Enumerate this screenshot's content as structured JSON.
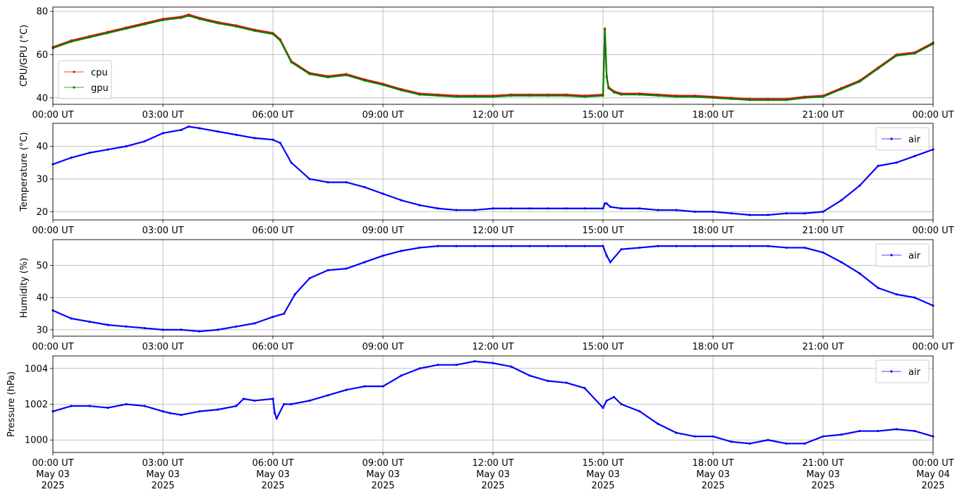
{
  "chart_data": [
    {
      "type": "line",
      "ylabel": "CPU/GPU (°C)",
      "ylim": [
        37,
        82
      ],
      "yticks": [
        40,
        60,
        80
      ],
      "ytick_labels": [
        "40",
        "60",
        "80"
      ],
      "xlim": [
        0,
        24
      ],
      "xtick_labels": [
        "00:00 UT",
        "03:00 UT",
        "06:00 UT",
        "09:00 UT",
        "12:00 UT",
        "15:00 UT",
        "18:00 UT",
        "21:00 UT",
        "00:00 UT"
      ],
      "grid": true,
      "legend": "lower-left",
      "x": [
        0,
        0.5,
        1,
        1.5,
        2,
        2.5,
        3,
        3.5,
        3.7,
        4,
        4.5,
        5,
        5.5,
        6,
        6.2,
        6.5,
        7,
        7.5,
        8,
        8.5,
        9,
        9.5,
        10,
        10.5,
        11,
        11.5,
        12,
        12.5,
        13,
        13.5,
        14,
        14.5,
        15.0,
        15.05,
        15.1,
        15.15,
        15.3,
        15.5,
        16,
        16.5,
        17,
        17.5,
        18,
        18.5,
        19,
        19.5,
        20,
        20.5,
        21,
        21.5,
        22,
        22.5,
        23,
        23.5,
        24
      ],
      "series": [
        {
          "name": "cpu",
          "color": "#ff0000",
          "values": [
            63.5,
            66.5,
            68.5,
            70.5,
            72.5,
            74.5,
            76.5,
            77.5,
            78.5,
            77,
            75,
            73.5,
            71.5,
            70,
            67,
            57,
            51.5,
            50,
            51,
            48.5,
            46.5,
            44,
            42,
            41.5,
            41,
            41,
            41,
            41.5,
            41.5,
            41.5,
            41.5,
            41,
            41.5,
            72,
            50,
            45,
            43,
            42,
            42,
            41.5,
            41,
            41,
            40.5,
            40,
            39.5,
            39.5,
            39.5,
            40.5,
            41,
            44.5,
            48,
            54,
            60,
            61,
            65.5
          ]
        },
        {
          "name": "gpu",
          "color": "#008000",
          "values": [
            63,
            66,
            68,
            70,
            72,
            74,
            76,
            77,
            78,
            76.5,
            74.5,
            73,
            71,
            69.5,
            66.5,
            56.5,
            51,
            49.5,
            50.5,
            48,
            46,
            43.5,
            41.5,
            41,
            40.5,
            40.5,
            40.5,
            41,
            41,
            41,
            41,
            40.5,
            41,
            71.5,
            49.5,
            44.5,
            42.5,
            41.5,
            41.5,
            41,
            40.5,
            40.5,
            40,
            39.5,
            39,
            39,
            39,
            40,
            40.5,
            44,
            47.5,
            53.5,
            59.5,
            60.5,
            65
          ]
        }
      ]
    },
    {
      "type": "line",
      "ylabel": "Temperature (°C)",
      "ylim": [
        17.5,
        47
      ],
      "yticks": [
        20,
        30,
        40
      ],
      "ytick_labels": [
        "20",
        "30",
        "40"
      ],
      "xlim": [
        0,
        24
      ],
      "xtick_labels": [
        "00:00 UT",
        "03:00 UT",
        "06:00 UT",
        "09:00 UT",
        "12:00 UT",
        "15:00 UT",
        "18:00 UT",
        "21:00 UT",
        "00:00 UT"
      ],
      "grid": true,
      "legend": "upper-right",
      "x": [
        0,
        0.5,
        1,
        1.5,
        2,
        2.5,
        3,
        3.5,
        3.7,
        4,
        4.5,
        5,
        5.5,
        6,
        6.2,
        6.5,
        7,
        7.5,
        8,
        8.5,
        9,
        9.5,
        10,
        10.5,
        11,
        11.5,
        12,
        12.5,
        13,
        13.5,
        14,
        14.5,
        15.0,
        15.05,
        15.1,
        15.2,
        15.5,
        16,
        16.5,
        17,
        17.5,
        18,
        18.5,
        19,
        19.5,
        20,
        20.5,
        21,
        21.5,
        22,
        22.5,
        23,
        23.5,
        24
      ],
      "series": [
        {
          "name": "air",
          "color": "#0000ff",
          "values": [
            34.5,
            36.5,
            38,
            39,
            40,
            41.5,
            44,
            45,
            46,
            45.5,
            44.5,
            43.5,
            42.5,
            42,
            41,
            35,
            30,
            29,
            29,
            27.5,
            25.5,
            23.5,
            22,
            21,
            20.5,
            20.5,
            21,
            21,
            21,
            21,
            21,
            21,
            21,
            22.5,
            22.5,
            21.5,
            21,
            21,
            20.5,
            20.5,
            20,
            20,
            19.5,
            19,
            19,
            19.5,
            19.5,
            20,
            23.5,
            28,
            34,
            35,
            37,
            39
          ]
        }
      ]
    },
    {
      "type": "line",
      "ylabel": "Humidity (%)",
      "ylim": [
        28,
        58
      ],
      "yticks": [
        30,
        40,
        50
      ],
      "ytick_labels": [
        "30",
        "40",
        "50"
      ],
      "xlim": [
        0,
        24
      ],
      "xtick_labels": [
        "00:00 UT",
        "03:00 UT",
        "06:00 UT",
        "09:00 UT",
        "12:00 UT",
        "15:00 UT",
        "18:00 UT",
        "21:00 UT",
        "00:00 UT"
      ],
      "grid": true,
      "legend": "upper-right",
      "x": [
        0,
        0.5,
        1,
        1.5,
        2,
        2.5,
        3,
        3.5,
        4,
        4.5,
        5,
        5.5,
        6,
        6.3,
        6.6,
        7,
        7.5,
        8,
        8.5,
        9,
        9.5,
        10,
        10.5,
        11,
        11.5,
        12,
        12.5,
        13,
        13.5,
        14,
        14.5,
        15.0,
        15.1,
        15.2,
        15.5,
        16,
        16.5,
        17,
        17.5,
        18,
        18.5,
        19,
        19.5,
        20,
        20.5,
        21,
        21.5,
        22,
        22.5,
        23,
        23.5,
        24
      ],
      "series": [
        {
          "name": "air",
          "color": "#0000ff",
          "values": [
            36,
            33.5,
            32.5,
            31.5,
            31,
            30.5,
            30,
            30,
            29.5,
            30,
            31,
            32,
            34,
            35,
            41,
            46,
            48.5,
            49,
            51,
            53,
            54.5,
            55.5,
            56,
            56,
            56,
            56,
            56,
            56,
            56,
            56,
            56,
            56,
            53,
            51,
            55,
            55.5,
            56,
            56,
            56,
            56,
            56,
            56,
            56,
            55.5,
            55.5,
            54,
            51,
            47.5,
            43,
            41,
            40,
            37.5
          ]
        }
      ]
    },
    {
      "type": "line",
      "ylabel": "Pressure (hPa)",
      "ylim": [
        999.3,
        1004.7
      ],
      "yticks": [
        1000,
        1002,
        1004
      ],
      "ytick_labels": [
        "1000",
        "1002",
        "1004"
      ],
      "xlim": [
        0,
        24
      ],
      "xtick_labels": [
        "00:00 UT\nMay 03\n2025",
        "03:00 UT\nMay 03\n2025",
        "06:00 UT\nMay 03\n2025",
        "09:00 UT\nMay 03\n2025",
        "12:00 UT\nMay 03\n2025",
        "15:00 UT\nMay 03\n2025",
        "18:00 UT\nMay 03\n2025",
        "21:00 UT\nMay 03\n2025",
        "00:00 UT\nMay 04\n2025"
      ],
      "grid": true,
      "legend": "upper-right",
      "x": [
        0,
        0.5,
        1,
        1.5,
        2,
        2.5,
        3,
        3.2,
        3.5,
        4,
        4.5,
        5,
        5.2,
        5.5,
        6,
        6.05,
        6.1,
        6.3,
        6.5,
        7,
        7.5,
        8,
        8.5,
        9,
        9.5,
        10,
        10.5,
        11,
        11.5,
        12,
        12.5,
        13,
        13.5,
        14,
        14.5,
        15.0,
        15.1,
        15.3,
        15.5,
        16,
        16.5,
        17,
        17.5,
        18,
        18.5,
        19,
        19.5,
        20,
        20.5,
        21,
        21.5,
        22,
        22.5,
        23,
        23.5,
        24
      ],
      "series": [
        {
          "name": "air",
          "color": "#0000ff",
          "values": [
            1001.6,
            1001.9,
            1001.9,
            1001.8,
            1002,
            1001.9,
            1001.6,
            1001.5,
            1001.4,
            1001.6,
            1001.7,
            1001.9,
            1002.3,
            1002.2,
            1002.3,
            1001.5,
            1001.2,
            1002,
            1002,
            1002.2,
            1002.5,
            1002.8,
            1003,
            1003,
            1003.6,
            1004,
            1004.2,
            1004.2,
            1004.4,
            1004.3,
            1004.1,
            1003.6,
            1003.3,
            1003.2,
            1002.9,
            1001.8,
            1002.2,
            1002.4,
            1002,
            1001.6,
            1000.9,
            1000.4,
            1000.2,
            1000.2,
            999.9,
            999.8,
            1000,
            999.8,
            999.8,
            1000.2,
            1000.3,
            1000.5,
            1000.5,
            1000.6,
            1000.5,
            1000.2
          ]
        }
      ]
    }
  ]
}
